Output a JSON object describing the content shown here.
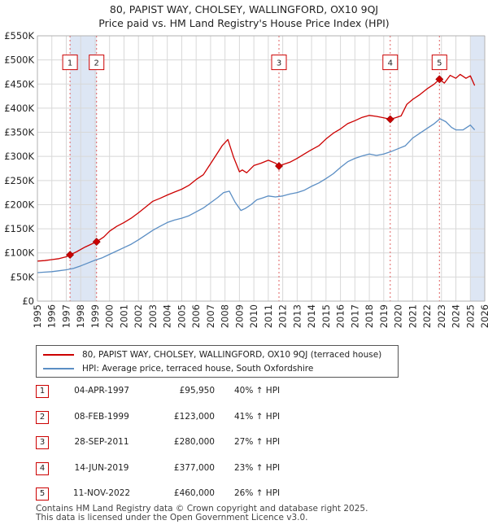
{
  "title_line1": "80, PAPIST WAY, CHOLSEY, WALLINGFORD, OX10 9QJ",
  "title_line2": "Price paid vs. HM Land Registry's House Price Index (HPI)",
  "legend": {
    "property_label": "80, PAPIST WAY, CHOLSEY, WALLINGFORD, OX10 9QJ (terraced house)",
    "hpi_label": "HPI: Average price, terraced house, South Oxfordshire"
  },
  "sales": [
    {
      "num": "1",
      "date": "04-APR-1997",
      "price": "£95,950",
      "hpi_change": "40% ↑ HPI"
    },
    {
      "num": "2",
      "date": "08-FEB-1999",
      "price": "£123,000",
      "hpi_change": "41% ↑ HPI"
    },
    {
      "num": "3",
      "date": "28-SEP-2011",
      "price": "£280,000",
      "hpi_change": "27% ↑ HPI"
    },
    {
      "num": "4",
      "date": "14-JUN-2019",
      "price": "£377,000",
      "hpi_change": "23% ↑ HPI"
    },
    {
      "num": "5",
      "date": "11-NOV-2022",
      "price": "£460,000",
      "hpi_change": "26% ↑ HPI"
    }
  ],
  "footer_line1": "Contains HM Land Registry data © Crown copyright and database right 2025.",
  "footer_line2": "This data is licensed under the Open Government Licence v3.0.",
  "colors": {
    "property": "#cc0000",
    "hpi": "#5b8ec4",
    "shade": "#dde6f4",
    "vline": "#e06060"
  },
  "chart_data": {
    "type": "line",
    "title": "80, PAPIST WAY, CHOLSEY, WALLINGFORD, OX10 9QJ — Price paid vs. HM Land Registry's House Price Index (HPI)",
    "xlabel": "",
    "ylabel": "",
    "xlim": [
      1995,
      2026
    ],
    "ylim": [
      0,
      550000
    ],
    "x_ticks": [
      "1995",
      "1996",
      "1997",
      "1998",
      "1999",
      "2000",
      "2001",
      "2002",
      "2003",
      "2004",
      "2005",
      "2006",
      "2007",
      "2008",
      "2009",
      "2010",
      "2011",
      "2012",
      "2013",
      "2014",
      "2015",
      "2016",
      "2017",
      "2018",
      "2019",
      "2020",
      "2021",
      "2022",
      "2023",
      "2024",
      "2025",
      "2026"
    ],
    "y_ticks": [
      {
        "value": 0,
        "label": "£0"
      },
      {
        "value": 50000,
        "label": "£50K"
      },
      {
        "value": 100000,
        "label": "£100K"
      },
      {
        "value": 150000,
        "label": "£150K"
      },
      {
        "value": 200000,
        "label": "£200K"
      },
      {
        "value": 250000,
        "label": "£250K"
      },
      {
        "value": 300000,
        "label": "£300K"
      },
      {
        "value": 350000,
        "label": "£350K"
      },
      {
        "value": 400000,
        "label": "£400K"
      },
      {
        "value": 450000,
        "label": "£450K"
      },
      {
        "value": 500000,
        "label": "£500K"
      },
      {
        "value": 550000,
        "label": "£550K"
      }
    ],
    "series": [
      {
        "name": "80, PAPIST WAY, CHOLSEY, WALLINGFORD, OX10 9QJ (terraced house)",
        "x": [
          1995.0,
          1995.5,
          1996.0,
          1996.5,
          1997.0,
          1997.26,
          1997.7,
          1998.3,
          1998.8,
          1999.1,
          1999.6,
          2000.0,
          2000.5,
          2001.0,
          2001.5,
          2002.0,
          2002.5,
          2003.0,
          2003.5,
          2004.0,
          2004.5,
          2005.0,
          2005.5,
          2006.0,
          2006.5,
          2007.0,
          2007.5,
          2007.8,
          2008.2,
          2008.6,
          2009.0,
          2009.2,
          2009.5,
          2010.0,
          2010.5,
          2011.0,
          2011.5,
          2011.74,
          2012.0,
          2012.5,
          2013.0,
          2013.5,
          2014.0,
          2014.5,
          2015.0,
          2015.5,
          2016.0,
          2016.5,
          2017.0,
          2017.5,
          2018.0,
          2018.5,
          2019.0,
          2019.45,
          2019.8,
          2020.2,
          2020.6,
          2021.0,
          2021.5,
          2022.0,
          2022.5,
          2022.86,
          2023.2,
          2023.6,
          2024.0,
          2024.3,
          2024.7,
          2025.0,
          2025.3
        ],
        "values": [
          83000,
          84000,
          86000,
          88000,
          92000,
          95950,
          102000,
          112000,
          119000,
          123000,
          133000,
          145000,
          155000,
          163000,
          172000,
          183000,
          195000,
          207000,
          213000,
          220000,
          226000,
          232000,
          240000,
          252000,
          262000,
          285000,
          308000,
          322000,
          335000,
          298000,
          268000,
          272000,
          266000,
          281000,
          286000,
          292000,
          286000,
          280000,
          283000,
          288000,
          296000,
          305000,
          314000,
          322000,
          336000,
          348000,
          357000,
          368000,
          374000,
          381000,
          385000,
          383000,
          380000,
          377000,
          380000,
          384000,
          408000,
          418000,
          428000,
          440000,
          450000,
          460000,
          452000,
          468000,
          462000,
          470000,
          462000,
          467000,
          447000
        ]
      },
      {
        "name": "HPI: Average price, terraced house, South Oxfordshire",
        "x": [
          1995.0,
          1995.5,
          1996.0,
          1996.5,
          1997.0,
          1997.5,
          1998.0,
          1998.5,
          1999.0,
          1999.5,
          2000.0,
          2000.5,
          2001.0,
          2001.5,
          2002.0,
          2002.5,
          2003.0,
          2003.5,
          2004.0,
          2004.5,
          2005.0,
          2005.5,
          2006.0,
          2006.5,
          2007.0,
          2007.5,
          2007.9,
          2008.3,
          2008.7,
          2009.1,
          2009.4,
          2009.8,
          2010.2,
          2010.6,
          2011.0,
          2011.5,
          2012.0,
          2012.5,
          2013.0,
          2013.5,
          2014.0,
          2014.5,
          2015.0,
          2015.5,
          2016.0,
          2016.5,
          2017.0,
          2017.5,
          2018.0,
          2018.5,
          2019.0,
          2019.5,
          2020.0,
          2020.5,
          2021.0,
          2021.5,
          2022.0,
          2022.5,
          2022.9,
          2023.3,
          2023.7,
          2024.0,
          2024.5,
          2025.0,
          2025.3
        ],
        "values": [
          59000,
          60000,
          61000,
          63000,
          65000,
          68000,
          73000,
          79000,
          85000,
          90000,
          97000,
          104000,
          111000,
          118000,
          127000,
          137000,
          147000,
          155000,
          163000,
          168000,
          172000,
          177000,
          185000,
          193000,
          204000,
          215000,
          225000,
          228000,
          205000,
          188000,
          192000,
          200000,
          210000,
          214000,
          218000,
          216000,
          218000,
          222000,
          225000,
          230000,
          238000,
          245000,
          254000,
          264000,
          277000,
          289000,
          296000,
          301000,
          305000,
          302000,
          305000,
          310000,
          316000,
          322000,
          338000,
          348000,
          358000,
          368000,
          378000,
          372000,
          360000,
          355000,
          355000,
          365000,
          355000
        ]
      }
    ],
    "sale_markers": [
      {
        "label": "1",
        "x": 1997.26,
        "value": 95950
      },
      {
        "label": "2",
        "x": 1999.1,
        "value": 123000
      },
      {
        "label": "3",
        "x": 2011.74,
        "value": 280000
      },
      {
        "label": "4",
        "x": 2019.45,
        "value": 377000
      },
      {
        "label": "5",
        "x": 2022.86,
        "value": 460000
      }
    ],
    "marker_label_value": 495000,
    "shaded_ranges": [
      [
        1997.26,
        1999.1
      ],
      [
        2025.0,
        2026.0
      ]
    ]
  }
}
